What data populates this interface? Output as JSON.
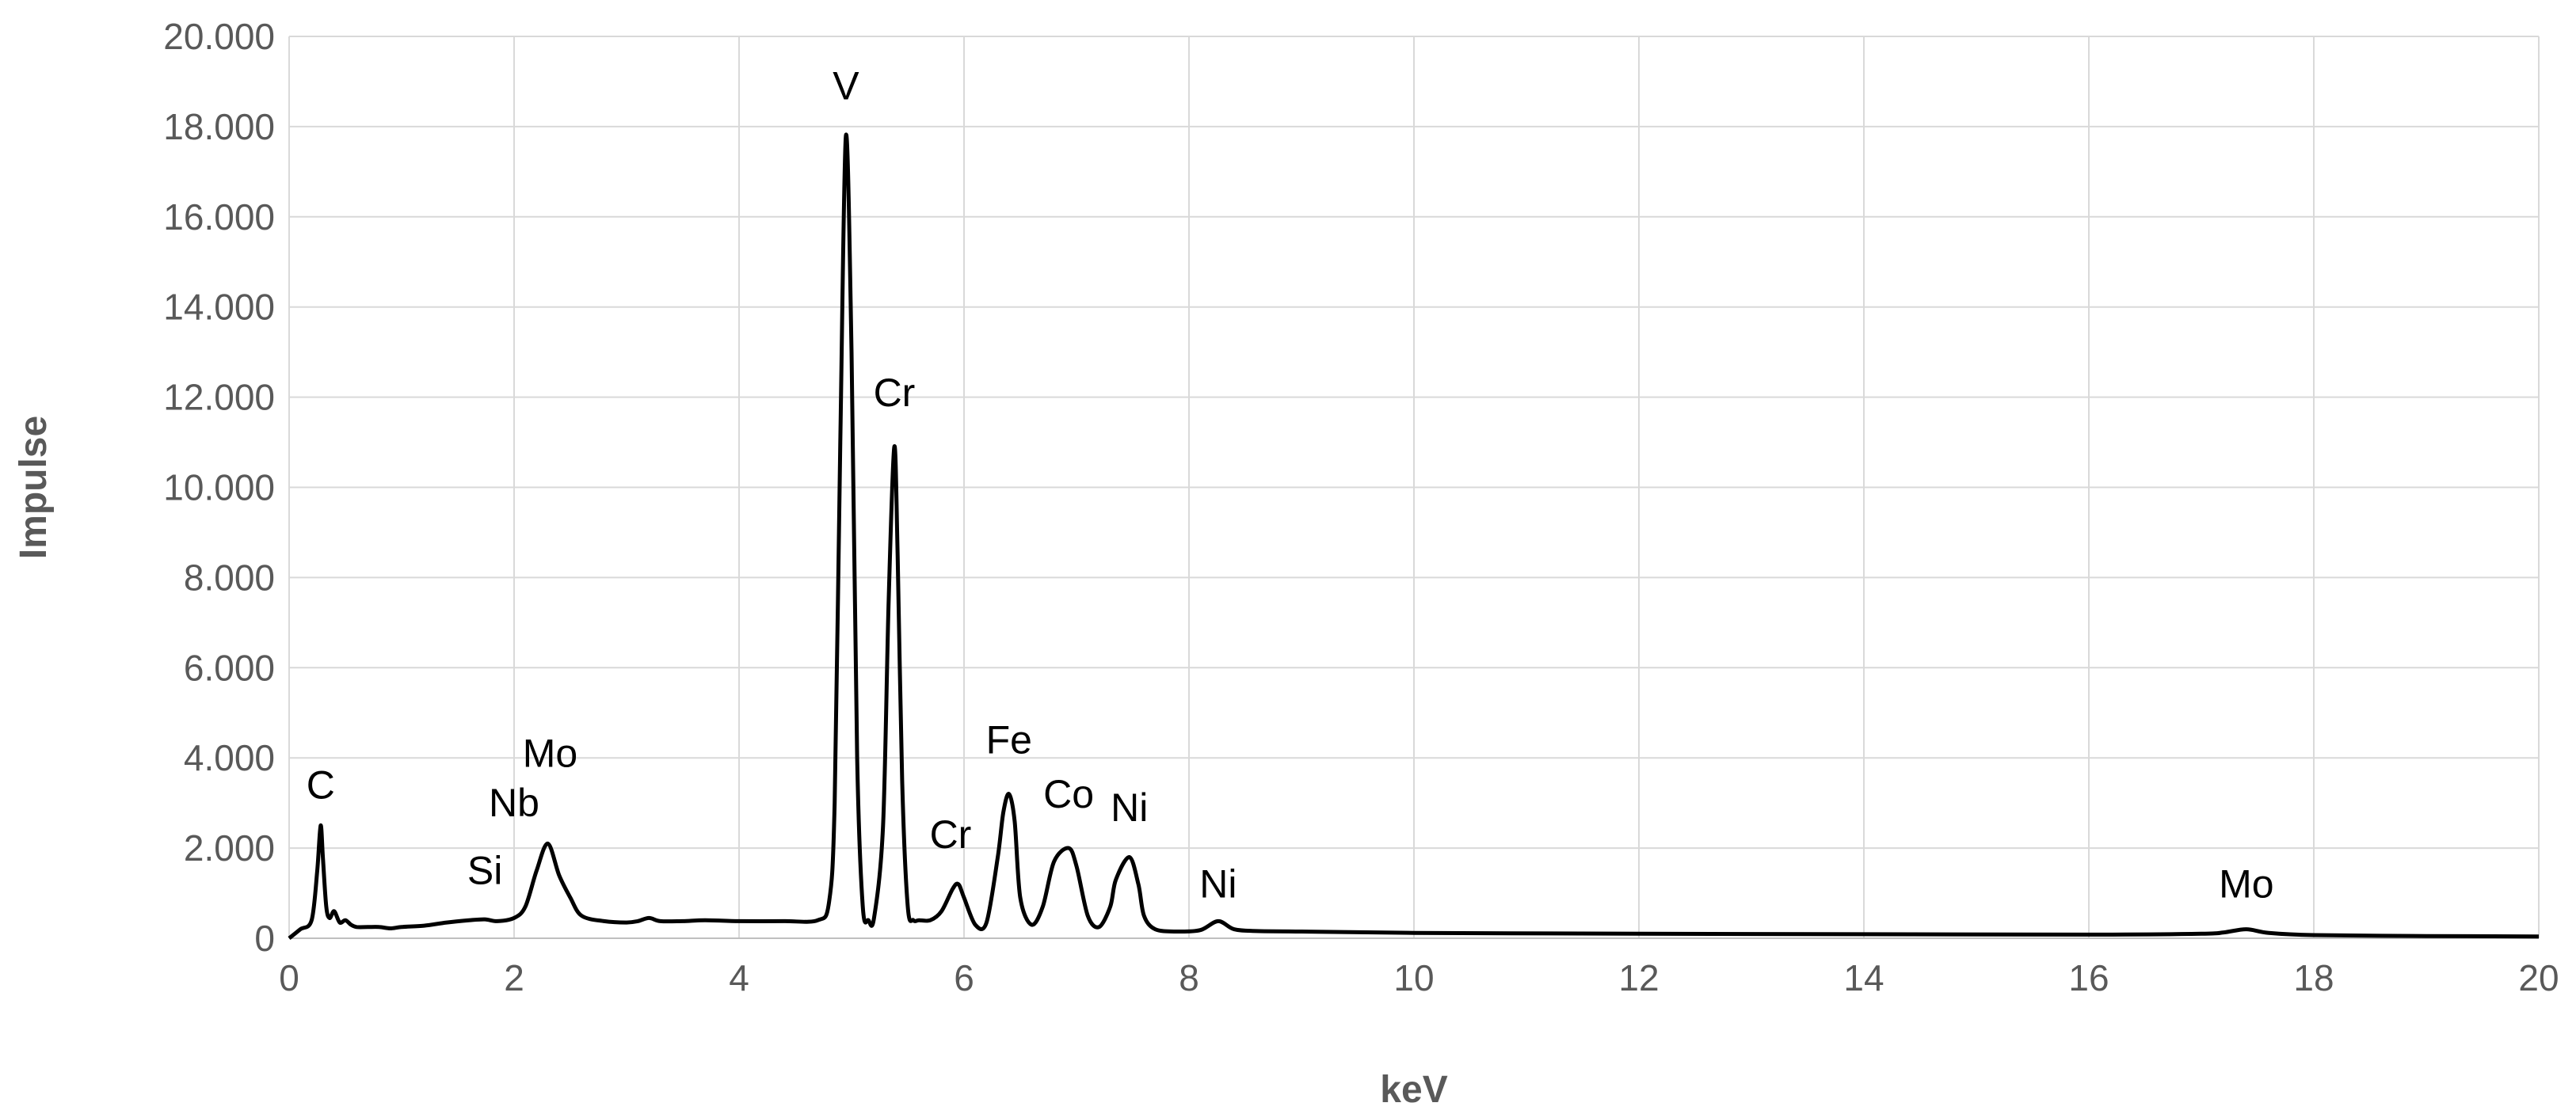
{
  "chart_data": {
    "type": "line",
    "title": "",
    "xlabel": "keV",
    "ylabel": "Impulse",
    "xlim": [
      0,
      20
    ],
    "ylim": [
      0,
      20000
    ],
    "x_ticks": [
      0,
      2,
      4,
      6,
      8,
      10,
      12,
      14,
      16,
      18,
      20
    ],
    "x_tick_labels": [
      "0",
      "2",
      "4",
      "6",
      "8",
      "10",
      "12",
      "14",
      "16",
      "18",
      "20"
    ],
    "y_ticks": [
      0,
      2000,
      4000,
      6000,
      8000,
      10000,
      12000,
      14000,
      16000,
      18000,
      20000
    ],
    "y_tick_labels": [
      "0",
      "2.000",
      "4.000",
      "6.000",
      "8.000",
      "10.000",
      "12.000",
      "14.000",
      "16.000",
      "18.000",
      "20.000"
    ],
    "grid": true,
    "line_color": "#000000",
    "series": [
      {
        "x": [
          0.0,
          0.1,
          0.2,
          0.25,
          0.28,
          0.3,
          0.33,
          0.36,
          0.4,
          0.45,
          0.5,
          0.55,
          0.6,
          0.7,
          0.8,
          0.9,
          1.0,
          1.2,
          1.4,
          1.6,
          1.74,
          1.85,
          2.0,
          2.1,
          2.2,
          2.3,
          2.4,
          2.5,
          2.6,
          2.8,
          3.0,
          3.1,
          3.2,
          3.3,
          3.5,
          3.7,
          4.0,
          4.4,
          4.7,
          4.8,
          4.85,
          4.9,
          4.95,
          5.0,
          5.05,
          5.1,
          5.15,
          5.2,
          5.28,
          5.33,
          5.38,
          5.41,
          5.45,
          5.5,
          5.55,
          5.6,
          5.7,
          5.8,
          5.9,
          5.95,
          6.0,
          6.1,
          6.2,
          6.3,
          6.35,
          6.4,
          6.45,
          6.5,
          6.6,
          6.7,
          6.8,
          6.93,
          7.0,
          7.1,
          7.2,
          7.3,
          7.35,
          7.47,
          7.55,
          7.6,
          7.7,
          7.9,
          8.1,
          8.26,
          8.4,
          8.6,
          9.0,
          10.0,
          12.0,
          14.0,
          16.0,
          17.0,
          17.2,
          17.4,
          17.6,
          18.0,
          19.0,
          20.0
        ],
        "y": [
          0,
          200,
          400,
          1500,
          2500,
          1800,
          700,
          450,
          600,
          350,
          400,
          300,
          250,
          250,
          250,
          220,
          250,
          280,
          350,
          400,
          420,
          380,
          450,
          700,
          1500,
          2100,
          1400,
          900,
          500,
          380,
          350,
          380,
          450,
          380,
          380,
          400,
          380,
          380,
          400,
          800,
          3000,
          11000,
          17800,
          13000,
          4000,
          700,
          400,
          450,
          2500,
          7500,
          10900,
          8500,
          3500,
          700,
          400,
          400,
          400,
          600,
          1100,
          1200,
          900,
          300,
          350,
          1800,
          2800,
          3200,
          2600,
          900,
          300,
          700,
          1700,
          2000,
          1600,
          500,
          250,
          700,
          1300,
          1800,
          1200,
          500,
          200,
          150,
          180,
          380,
          200,
          160,
          150,
          120,
          100,
          90,
          80,
          100,
          130,
          200,
          120,
          70,
          50,
          40
        ]
      }
    ],
    "annotations": [
      {
        "text": "C",
        "x": 0.28,
        "y": 3100
      },
      {
        "text": "Si",
        "x": 1.74,
        "y": 1200
      },
      {
        "text": "Nb",
        "x": 2.0,
        "y": 2700
      },
      {
        "text": "Mo",
        "x": 2.32,
        "y": 3800
      },
      {
        "text": "V",
        "x": 4.95,
        "y": 18600
      },
      {
        "text": "Cr",
        "x": 5.38,
        "y": 11800
      },
      {
        "text": "Cr",
        "x": 5.88,
        "y": 2000
      },
      {
        "text": "Fe",
        "x": 6.4,
        "y": 4100
      },
      {
        "text": "Co",
        "x": 6.93,
        "y": 2900
      },
      {
        "text": "Ni",
        "x": 7.47,
        "y": 2600
      },
      {
        "text": "Ni",
        "x": 8.26,
        "y": 900
      },
      {
        "text": "Mo",
        "x": 17.4,
        "y": 900
      }
    ]
  }
}
